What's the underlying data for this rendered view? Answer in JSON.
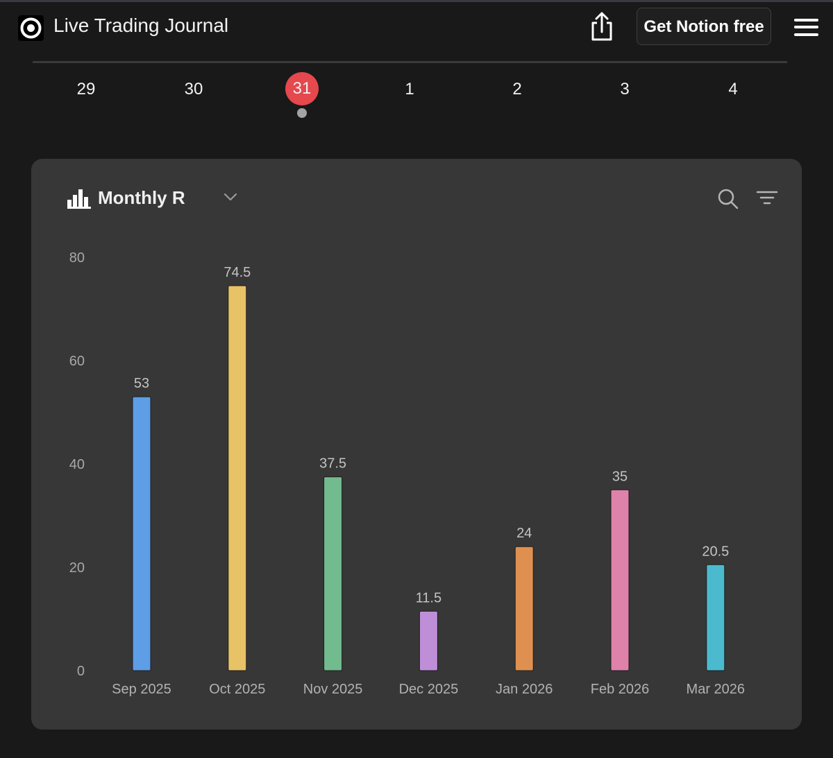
{
  "header": {
    "app_title": "Live Trading Journal",
    "cta_label": "Get Notion free",
    "icons": [
      "target-logo-icon",
      "share-icon",
      "menu-icon"
    ]
  },
  "calendar": {
    "days": [
      "29",
      "30",
      "31",
      "1",
      "2",
      "3",
      "4"
    ],
    "selected_day": "31"
  },
  "view": {
    "title": "Monthly R",
    "icons": [
      "bar-chart-icon",
      "chevron-down-icon",
      "search-icon",
      "filter-icon"
    ]
  },
  "chart_data": {
    "type": "bar",
    "title": "Monthly R",
    "xlabel": "",
    "ylabel": "",
    "categories": [
      "Sep 2025",
      "Oct 2025",
      "Nov 2025",
      "Dec 2025",
      "Jan 2026",
      "Feb 2026",
      "Mar 2026"
    ],
    "values": [
      53,
      74.5,
      37.5,
      11.5,
      24,
      35,
      20.5
    ],
    "value_labels": [
      "53",
      "74.5",
      "37.5",
      "11.5",
      "24",
      "35",
      "20.5"
    ],
    "colors": [
      "#5d9ee6",
      "#e8c266",
      "#72bb8e",
      "#bf8ed8",
      "#df9050",
      "#df82aa",
      "#4bbace"
    ],
    "ylim": [
      0,
      80
    ],
    "yticks": [
      0,
      20,
      40,
      60,
      80
    ],
    "ytick_labels": [
      "0",
      "20",
      "40",
      "60",
      "80"
    ],
    "grid": false,
    "legend": "none"
  }
}
